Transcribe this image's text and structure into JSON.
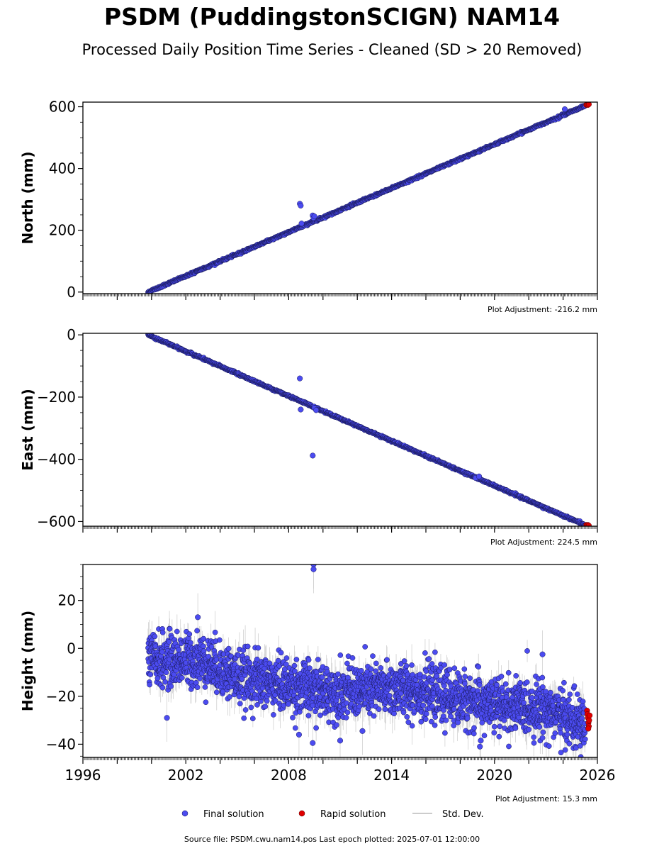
{
  "title": "PSDM (PuddingstonSCIGN) NAM14",
  "subtitle": "Processed Daily Position Time Series - Cleaned (SD > 20 Removed)",
  "footer": "Source file: PSDM.cwu.nam14.pos  Last epoch plotted: 2025-07-01 12:00:00",
  "colors": {
    "final": "#4b4bf0",
    "rapid": "#e00000",
    "stddev": "#999999",
    "edge": "#1a1a5a"
  },
  "chart_data": [
    {
      "type": "scatter",
      "panel": "north",
      "ylabel": "North (mm)",
      "xlim": [
        1996,
        2026
      ],
      "ylim": [
        -5,
        615
      ],
      "yticks": [
        0,
        200,
        400,
        600
      ],
      "adjustment": "Plot Adjustment: -216.2 mm",
      "trend": {
        "start": [
          1999.8,
          0
        ],
        "end": [
          2025.3,
          604
        ]
      },
      "outliers": [
        [
          2008.65,
          286
        ],
        [
          2008.7,
          280
        ],
        [
          2008.75,
          222
        ],
        [
          2009.4,
          248
        ],
        [
          2009.45,
          240
        ],
        [
          2009.5,
          245
        ],
        [
          2024.1,
          592
        ]
      ],
      "rapid": [
        [
          2025.35,
          606
        ],
        [
          2025.4,
          607
        ],
        [
          2025.45,
          606
        ],
        [
          2025.5,
          608
        ]
      ]
    },
    {
      "type": "scatter",
      "panel": "east",
      "ylabel": "East (mm)",
      "xlim": [
        1996,
        2026
      ],
      "ylim": [
        -615,
        5
      ],
      "yticks": [
        0,
        -200,
        -400,
        -600
      ],
      "adjustment": "Plot Adjustment: 224.5 mm",
      "trend": {
        "start": [
          1999.8,
          0
        ],
        "end": [
          2025.3,
          -612
        ]
      },
      "outliers": [
        [
          2008.65,
          -140
        ],
        [
          2008.7,
          -240
        ],
        [
          2009.4,
          -388
        ],
        [
          2009.5,
          -235
        ],
        [
          2009.6,
          -242
        ],
        [
          2018.9,
          -460
        ],
        [
          2019.1,
          -455
        ]
      ],
      "rapid": [
        [
          2025.35,
          -611
        ],
        [
          2025.4,
          -612
        ],
        [
          2025.45,
          -611
        ],
        [
          2025.5,
          -613
        ]
      ]
    },
    {
      "type": "scatter",
      "panel": "height",
      "ylabel": "Height (mm)",
      "xlim": [
        1996,
        2026
      ],
      "ylim": [
        -45.5,
        35
      ],
      "yticks": [
        20,
        0,
        -20,
        -40
      ],
      "xticks": [
        1996,
        2002,
        2008,
        2014,
        2020,
        2026
      ],
      "adjustment": "Plot Adjustment: 15.3 mm",
      "trend_points": [
        [
          1999.8,
          -5
        ],
        [
          2003.0,
          -5
        ],
        [
          2005.0,
          -12
        ],
        [
          2010.0,
          -18
        ],
        [
          2015.0,
          -17
        ],
        [
          2020.0,
          -24
        ],
        [
          2023.0,
          -25
        ],
        [
          2025.3,
          -33
        ]
      ],
      "scatter_sd": 5.5,
      "outliers": [
        [
          2009.45,
          35
        ],
        [
          2009.45,
          33
        ],
        [
          2009.4,
          -39.5
        ],
        [
          2008.6,
          -36
        ],
        [
          2019.15,
          -41
        ],
        [
          2019.2,
          -38.5
        ],
        [
          2011.0,
          -38.5
        ],
        [
          2002.7,
          13
        ],
        [
          2022.8,
          -2.5
        ],
        [
          2012.3,
          -34.5
        ],
        [
          2000.9,
          -29
        ]
      ],
      "rapid": [
        [
          2025.4,
          -26
        ],
        [
          2025.42,
          -27.5
        ],
        [
          2025.45,
          -29
        ],
        [
          2025.48,
          -31
        ],
        [
          2025.5,
          -32.5
        ],
        [
          2025.52,
          -30
        ],
        [
          2025.55,
          -28
        ],
        [
          2025.47,
          -33.5
        ]
      ]
    }
  ],
  "legend": [
    {
      "label": "Final solution",
      "kind": "final"
    },
    {
      "label": "Rapid solution",
      "kind": "rapid"
    },
    {
      "label": "Std. Dev.",
      "kind": "stddev"
    }
  ]
}
